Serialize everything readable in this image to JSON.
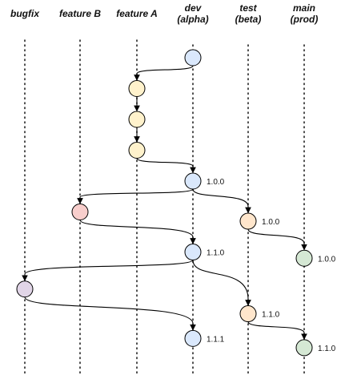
{
  "colors": {
    "dev": "#dae8fc",
    "feature": "#fff2cc",
    "feature_b": "#f8cecc",
    "bugfix": "#e1d5e7",
    "test": "#ffe6cc",
    "main": "#d5e8d4"
  },
  "lanes": [
    {
      "id": "bugfix",
      "title": [
        "bugfix"
      ]
    },
    {
      "id": "featureB",
      "title": [
        "feature B"
      ]
    },
    {
      "id": "featureA",
      "title": [
        "feature A"
      ]
    },
    {
      "id": "dev",
      "title": [
        "dev",
        "(alpha)"
      ]
    },
    {
      "id": "test",
      "title": [
        "test",
        "(beta)"
      ]
    },
    {
      "id": "main",
      "title": [
        "main",
        "(prod)"
      ]
    }
  ],
  "nodes": [
    {
      "id": "d0",
      "lane": "dev",
      "row": 0,
      "color": "dev",
      "label": ""
    },
    {
      "id": "a1",
      "lane": "featureA",
      "row": 1,
      "color": "feature",
      "label": ""
    },
    {
      "id": "a2",
      "lane": "featureA",
      "row": 2,
      "color": "feature",
      "label": ""
    },
    {
      "id": "a3",
      "lane": "featureA",
      "row": 3,
      "color": "feature",
      "label": ""
    },
    {
      "id": "d1",
      "lane": "dev",
      "row": 4,
      "color": "dev",
      "label": "1.0.0"
    },
    {
      "id": "b1",
      "lane": "featureB",
      "row": 5,
      "color": "feature_b",
      "label": ""
    },
    {
      "id": "t1",
      "lane": "test",
      "row": 5.3,
      "color": "test",
      "label": "1.0.0"
    },
    {
      "id": "m1",
      "lane": "main",
      "row": 6.5,
      "color": "main",
      "label": "1.0.0"
    },
    {
      "id": "d2",
      "lane": "dev",
      "row": 6.3,
      "color": "dev",
      "label": "1.1.0"
    },
    {
      "id": "x1",
      "lane": "bugfix",
      "row": 7.5,
      "color": "bugfix",
      "label": ""
    },
    {
      "id": "t2",
      "lane": "test",
      "row": 8.3,
      "color": "test",
      "label": "1.1.0"
    },
    {
      "id": "d3",
      "lane": "dev",
      "row": 9.1,
      "color": "dev",
      "label": "1.1.1"
    },
    {
      "id": "m2",
      "lane": "main",
      "row": 9.4,
      "color": "main",
      "label": "1.1.0"
    }
  ],
  "edges": [
    [
      "d0",
      "a1"
    ],
    [
      "a1",
      "a2"
    ],
    [
      "a2",
      "a3"
    ],
    [
      "a3",
      "d1"
    ],
    [
      "d1",
      "b1"
    ],
    [
      "d1",
      "t1"
    ],
    [
      "t1",
      "m1"
    ],
    [
      "b1",
      "d2"
    ],
    [
      "d2",
      "x1"
    ],
    [
      "d2",
      "t2"
    ],
    [
      "x1",
      "d3"
    ],
    [
      "t2",
      "m2"
    ]
  ]
}
